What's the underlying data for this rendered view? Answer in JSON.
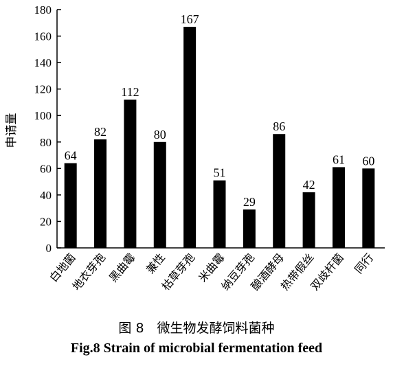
{
  "chart_data": {
    "type": "bar",
    "categories": [
      "白地菌",
      "地衣芽孢",
      "黑曲霉",
      "兼性",
      "枯草芽孢",
      "米曲霉",
      "纳豆芽孢",
      "酿酒酵母",
      "热带假丝",
      "双歧杆菌",
      "同行"
    ],
    "values": [
      64,
      82,
      112,
      80,
      167,
      51,
      29,
      86,
      42,
      61,
      60
    ],
    "ylabel": "申请量",
    "xlabel": "",
    "ylim": [
      0,
      180
    ],
    "yticks": [
      0,
      20,
      40,
      60,
      80,
      100,
      120,
      140,
      160,
      180
    ],
    "bar_color": "#000000",
    "grid": false,
    "legend": "none"
  },
  "caption": {
    "cn": "图 8　微生物发酵饲料菌种",
    "en": "Fig.8 Strain of microbial fermentation feed"
  }
}
